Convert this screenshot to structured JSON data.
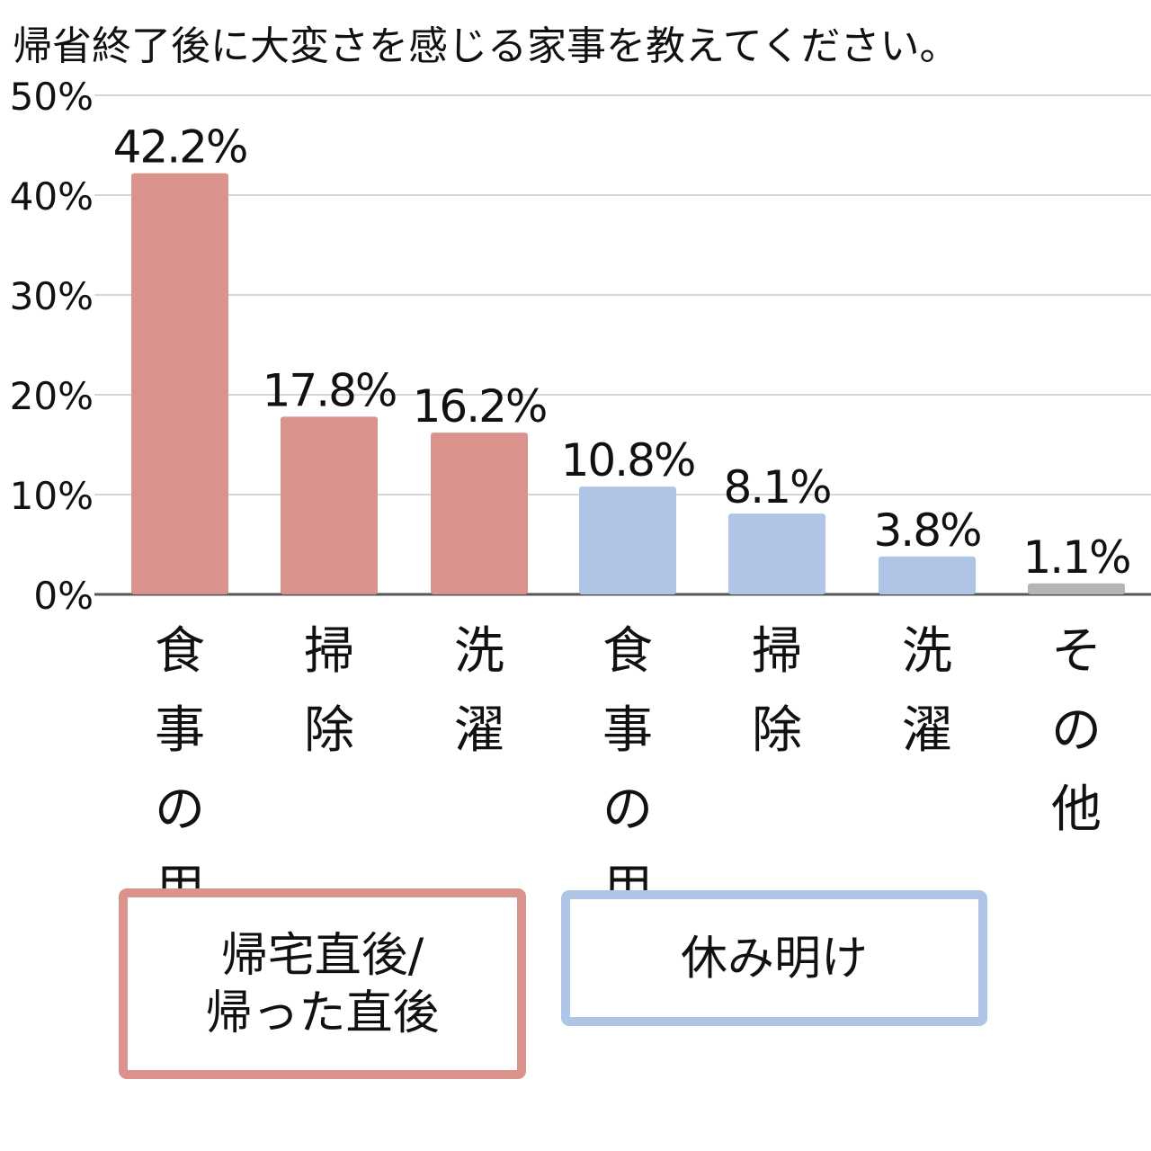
{
  "chart_data": {
    "type": "bar",
    "title": "帰省終了後に大変さを感じる家事を教えてください。",
    "xlabel": "",
    "ylabel": "",
    "ylim": [
      0,
      50
    ],
    "yticks": [
      0,
      10,
      20,
      30,
      40,
      50
    ],
    "ytick_labels": [
      "0%",
      "10%",
      "20%",
      "30%",
      "40%",
      "50%"
    ],
    "grid": true,
    "unit": "%",
    "categories": [
      "食事の用意",
      "掃除",
      "洗濯",
      "食事の用意",
      "掃除",
      "洗濯",
      "その他"
    ],
    "values": [
      42.2,
      17.8,
      16.2,
      10.8,
      8.1,
      3.8,
      1.1
    ],
    "data_labels": [
      "42.2%",
      "17.8%",
      "16.2%",
      "10.8%",
      "8.1%",
      "3.8%",
      "1.1%"
    ],
    "bar_colors": [
      "#d9928c",
      "#d9928c",
      "#d9928c",
      "#b0c4e6",
      "#b0c4e6",
      "#b0c4e6",
      "#b5b5b5"
    ],
    "groups": [
      {
        "label_lines": [
          "帰宅直後/",
          "帰った直後"
        ],
        "color": "#d9928c",
        "first": 0,
        "last": 2
      },
      {
        "label_lines": [
          "休み明け"
        ],
        "color": "#b0c4e6",
        "first": 3,
        "last": 5
      }
    ]
  }
}
